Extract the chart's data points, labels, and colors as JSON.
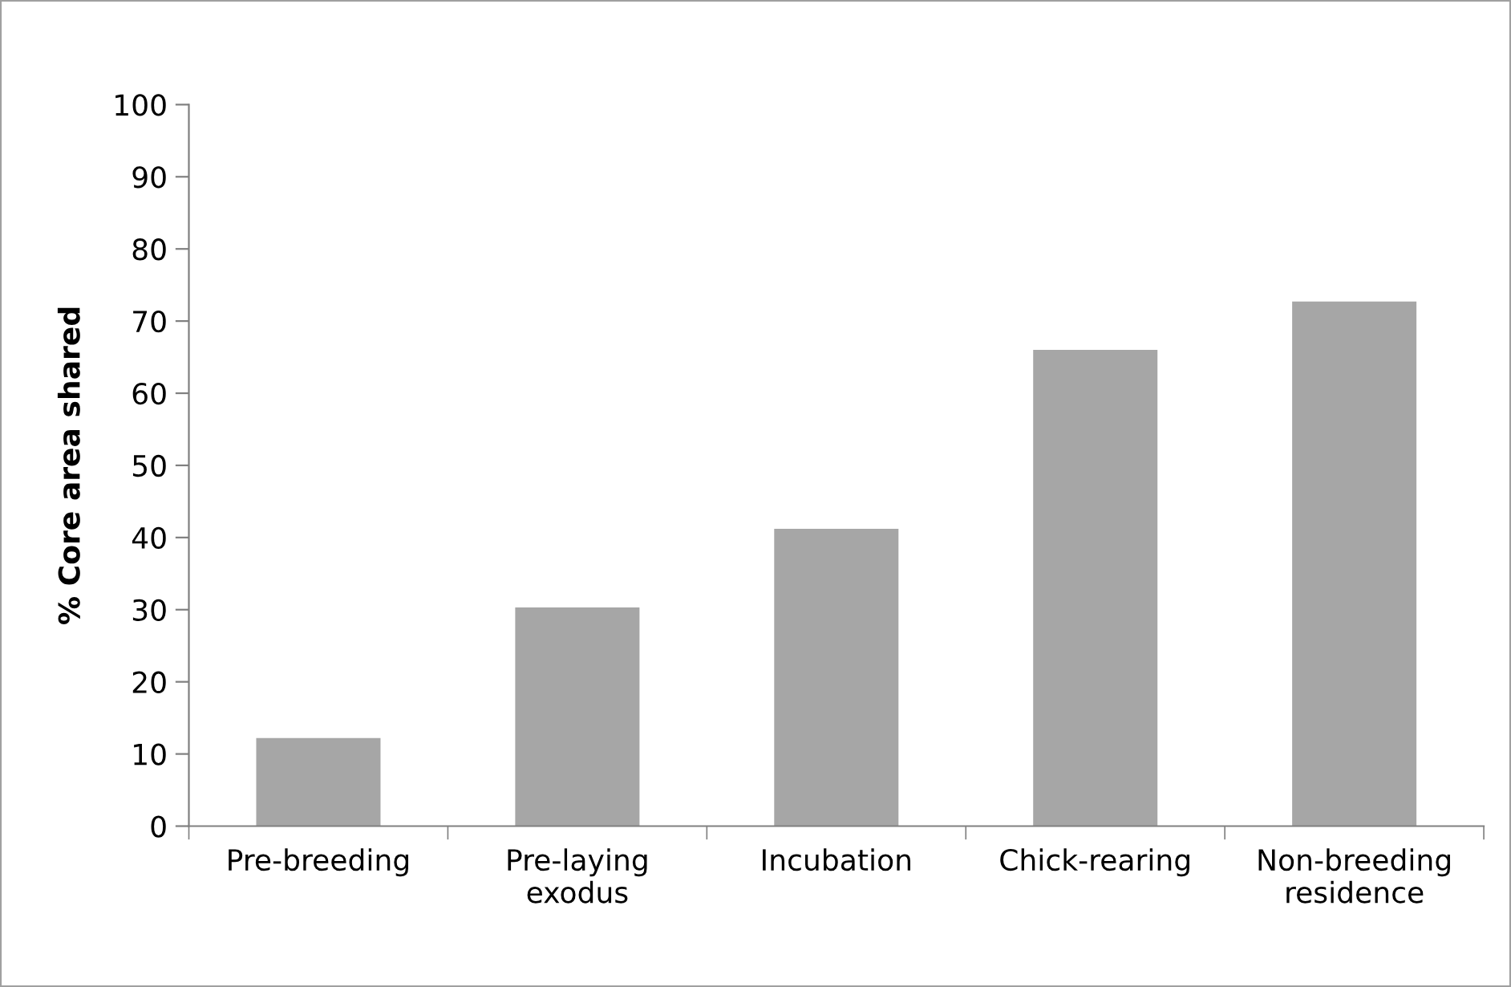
{
  "chart_data": {
    "type": "bar",
    "ylabel": "% Core area shared",
    "categories": [
      "Pre-breeding",
      "Pre-laying\nexodus",
      "Incubation",
      "Chick-rearing",
      "Non-breeding\nresidence"
    ],
    "values": [
      12.2,
      30.3,
      41.2,
      66,
      72.7
    ],
    "color": "#a6a6a6",
    "ylim": [
      0,
      100
    ],
    "yticks": [
      0,
      10,
      20,
      30,
      40,
      50,
      60,
      70,
      80,
      90,
      100
    ],
    "grid": false,
    "legend": false
  }
}
